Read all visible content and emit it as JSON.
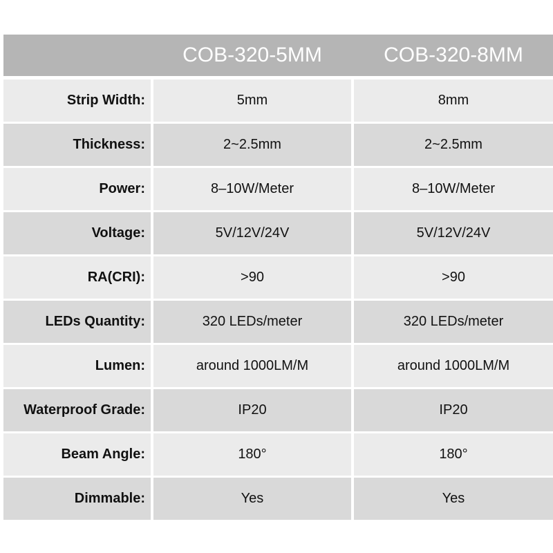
{
  "header": {
    "columns": [
      "COB-320-5MM",
      "COB-320-8MM"
    ]
  },
  "table": {
    "rows": [
      [
        "Strip Width:",
        "5mm",
        "8mm"
      ],
      [
        "Thickness:",
        "2~2.5mm",
        "2~2.5mm"
      ],
      [
        "Power:",
        "8–10W/Meter",
        "8–10W/Meter"
      ],
      [
        "Voltage:",
        "5V/12V/24V",
        "5V/12V/24V"
      ],
      [
        "RA(CRI):",
        ">90",
        ">90"
      ],
      [
        "LEDs Quantity:",
        "320 LEDs/meter",
        "320 LEDs/meter"
      ],
      [
        "Lumen:",
        "around 1000LM/M",
        "around 1000LM/M"
      ],
      [
        "Waterproof Grade:",
        "IP20",
        "IP20"
      ],
      [
        "Beam Angle:",
        "180°",
        "180°"
      ],
      [
        "Dimmable:",
        "Yes",
        "Yes"
      ]
    ]
  }
}
